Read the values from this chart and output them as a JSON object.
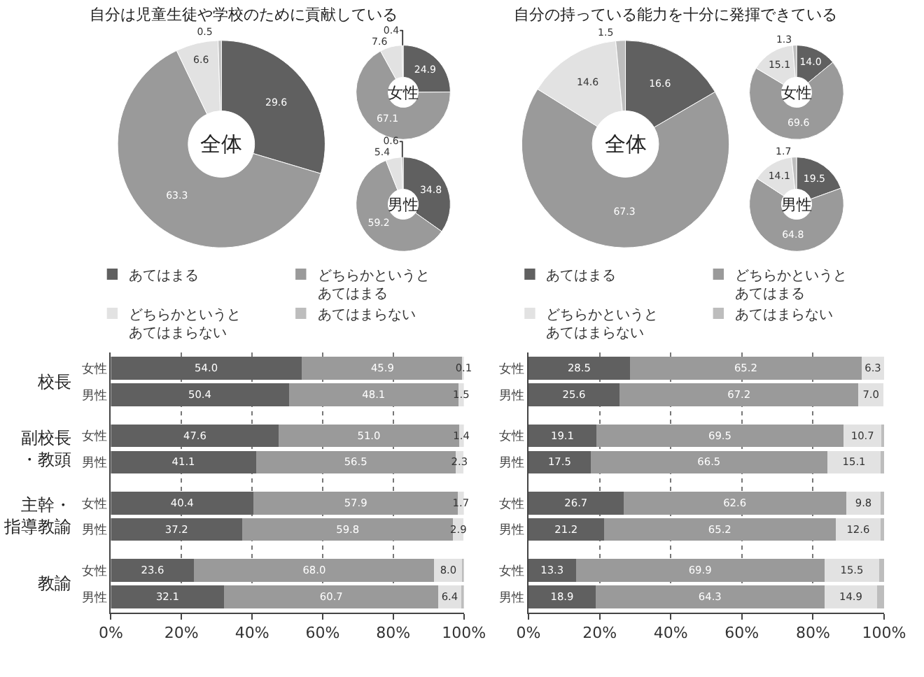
{
  "chart_data": [
    {
      "type": "donut",
      "title": "自分は児童生徒や学校のために貢献している",
      "categories": [
        "あてはまる",
        "どちらかというとあてはまる",
        "どちらかというとあてはまらない",
        "あてはまらない"
      ],
      "values": [
        29.6,
        63.3,
        6.6,
        0.5
      ],
      "colors": [
        "#606060",
        "#9a9a9a",
        "#e2e2e2",
        "#bdbdbd"
      ],
      "value_labels": [
        "29.6",
        "63.3",
        "6.6",
        "0.5"
      ],
      "annotations": [
        "全体"
      ],
      "legend": "bottom"
    },
    {
      "type": "donut",
      "categories": [
        null,
        null,
        null,
        null
      ],
      "values": [
        24.9,
        67.1,
        7.6,
        0.4
      ],
      "colors": [
        "#606060",
        "#9a9a9a",
        "#e2e2e2",
        "#bdbdbd"
      ],
      "value_labels": [
        "24.9",
        "67.1",
        "7.6",
        "0.4"
      ],
      "annotations": [
        "女性"
      ]
    },
    {
      "type": "donut",
      "categories": [
        null,
        null,
        null,
        null
      ],
      "values": [
        34.8,
        59.2,
        5.4,
        0.6
      ],
      "colors": [
        "#606060",
        "#9a9a9a",
        "#e2e2e2",
        "#bdbdbd"
      ],
      "value_labels": [
        "34.8",
        "59.2",
        "5.4",
        "0.6"
      ],
      "annotations": [
        "男性"
      ]
    },
    {
      "type": "donut",
      "title": "自分の持っている能力を十分に発揮できている",
      "categories": [
        "あてはまる",
        "どちらかというとあてはまる",
        "どちらかというとあてはまらない",
        "あてはまらない"
      ],
      "values": [
        16.6,
        67.3,
        14.6,
        1.5
      ],
      "colors": [
        "#606060",
        "#9a9a9a",
        "#e2e2e2",
        "#bdbdbd"
      ],
      "value_labels": [
        "16.6",
        "67.3",
        "14.6",
        "1.5"
      ],
      "annotations": [
        "全体"
      ],
      "legend": "bottom"
    },
    {
      "type": "donut",
      "categories": [
        null,
        null,
        null,
        null
      ],
      "values": [
        14.0,
        69.6,
        15.1,
        1.3
      ],
      "colors": [
        "#606060",
        "#9a9a9a",
        "#e2e2e2",
        "#bdbdbd"
      ],
      "value_labels": [
        "14.0",
        "69.6",
        "15.1",
        "1.3"
      ],
      "annotations": [
        "女性"
      ]
    },
    {
      "type": "donut",
      "categories": [
        null,
        null,
        null,
        null
      ],
      "values": [
        19.5,
        64.8,
        14.1,
        1.7
      ],
      "colors": [
        "#606060",
        "#9a9a9a",
        "#e2e2e2",
        "#bdbdbd"
      ],
      "value_labels": [
        "19.5",
        "64.8",
        "14.1",
        "1.7"
      ],
      "annotations": [
        "男性"
      ]
    },
    {
      "type": "bar",
      "orientation": "horizontal",
      "stacked": true,
      "categories": [
        "女性",
        "男性",
        "女性",
        "男性",
        "女性",
        "男性",
        "女性",
        "男性"
      ],
      "annotations": [
        "校長",
        "副校長・教頭",
        "主幹・指導教諭",
        "教諭"
      ],
      "series": [
        {
          "color": "#606060",
          "values": [
            54.0,
            50.4,
            47.6,
            41.1,
            40.4,
            37.2,
            23.6,
            32.1
          ],
          "value_labels": [
            "54.0",
            "50.4",
            "47.6",
            "41.1",
            "40.4",
            "37.2",
            "23.6",
            "32.1"
          ]
        },
        {
          "color": "#9a9a9a",
          "values": [
            45.9,
            48.1,
            51.0,
            56.5,
            57.9,
            59.8,
            68.0,
            60.7
          ],
          "value_labels": [
            "45.9",
            "48.1",
            "51.0",
            "56.5",
            "57.9",
            "59.8",
            "68.0",
            "60.7"
          ]
        },
        {
          "color": "#e2e2e2",
          "values": [
            0.1,
            1.5,
            1.4,
            2.3,
            1.7,
            2.9,
            8.0,
            6.4
          ],
          "value_labels": [
            "0.1",
            "1.5",
            "1.4",
            "2.3",
            "1.7",
            "2.9",
            "8.0",
            "6.4"
          ]
        },
        {
          "color": "#bdbdbd",
          "values": [
            0,
            0,
            0,
            0,
            0,
            0,
            0.4,
            0.8
          ]
        }
      ],
      "xlim": [
        0,
        100
      ],
      "xticks": [
        {
          "value": 0,
          "label": "0%"
        },
        {
          "value": 20,
          "label": "20%"
        },
        {
          "value": 40,
          "label": "40%"
        },
        {
          "value": 60,
          "label": "60%"
        },
        {
          "value": 80,
          "label": "80%"
        },
        {
          "value": 100,
          "label": "100%"
        }
      ],
      "grid": "x"
    },
    {
      "type": "bar",
      "orientation": "horizontal",
      "stacked": true,
      "categories": [
        "女性",
        "男性",
        "女性",
        "男性",
        "女性",
        "男性",
        "女性",
        "男性"
      ],
      "series": [
        {
          "color": "#606060",
          "values": [
            28.5,
            25.6,
            19.1,
            17.5,
            26.7,
            21.2,
            13.3,
            18.9
          ],
          "value_labels": [
            "28.5",
            "25.6",
            "19.1",
            "17.5",
            "26.7",
            "21.2",
            "13.3",
            "18.9"
          ]
        },
        {
          "color": "#9a9a9a",
          "values": [
            65.2,
            67.2,
            69.5,
            66.5,
            62.6,
            65.2,
            69.9,
            64.3
          ],
          "value_labels": [
            "65.2",
            "67.2",
            "69.5",
            "66.5",
            "62.6",
            "65.2",
            "69.9",
            "64.3"
          ]
        },
        {
          "color": "#e2e2e2",
          "values": [
            6.3,
            7.0,
            10.7,
            15.1,
            9.8,
            12.6,
            15.5,
            14.9
          ],
          "value_labels": [
            "6.3",
            "7.0",
            "10.7",
            "15.1",
            "9.8",
            "12.6",
            "15.5",
            "14.9"
          ]
        },
        {
          "color": "#bdbdbd",
          "values": [
            0,
            null,
            0.7,
            0.9,
            0.9,
            1.0,
            1.3,
            1.9
          ]
        }
      ],
      "xlim": [
        0,
        100
      ],
      "xticks": [
        {
          "value": 0,
          "label": "0%"
        },
        {
          "value": 20,
          "label": "20%"
        },
        {
          "value": 40,
          "label": "40%"
        },
        {
          "value": 60,
          "label": "60%"
        },
        {
          "value": 80,
          "label": "80%"
        },
        {
          "value": 100,
          "label": "100%"
        }
      ],
      "grid": "x"
    }
  ]
}
